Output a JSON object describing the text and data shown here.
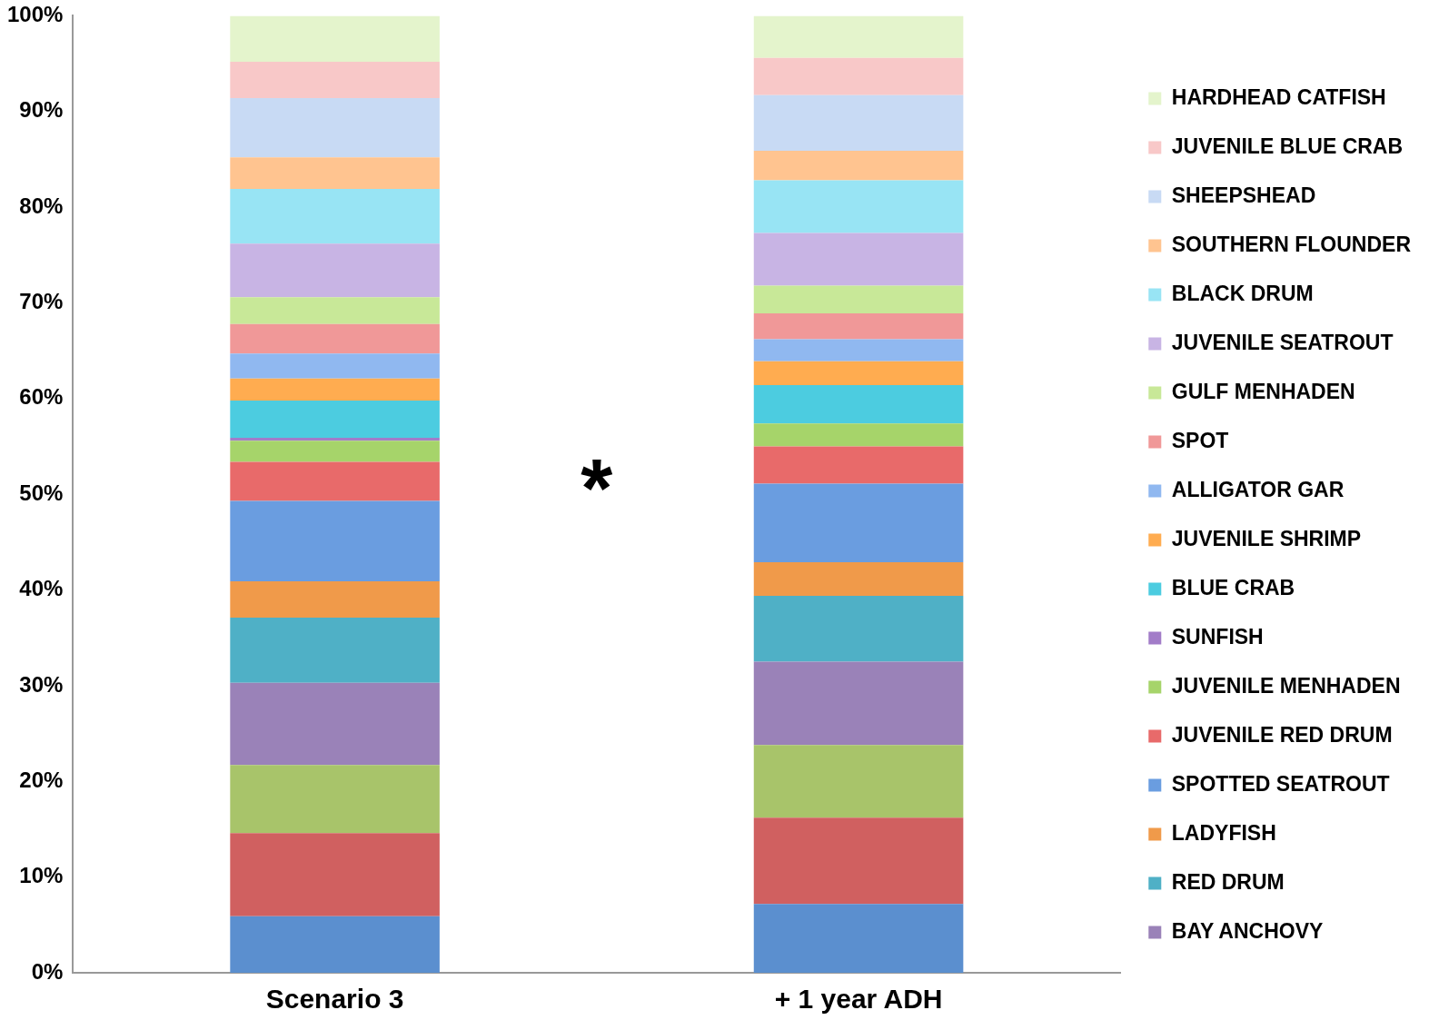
{
  "chart_data": {
    "type": "bar",
    "stacked": true,
    "categories": [
      "Scenario 3",
      "+ 1 year ADH"
    ],
    "series": [
      {
        "color": "#5b8fcf",
        "values": [
          5.9,
          7.2
        ]
      },
      {
        "color": "#d06060",
        "values": [
          8.7,
          9.0
        ]
      },
      {
        "color": "#a8c46a",
        "values": [
          7.1,
          7.6
        ]
      },
      {
        "name": "BAY ANCHOVY",
        "color": "#9a82b8",
        "values": [
          8.6,
          8.7
        ]
      },
      {
        "name": "RED DRUM",
        "color": "#4fb0c6",
        "values": [
          6.8,
          6.9
        ]
      },
      {
        "name": "LADYFISH",
        "color": "#f09a4a",
        "values": [
          3.8,
          3.5
        ]
      },
      {
        "name": "SPOTTED SEATROUT",
        "color": "#6a9de0",
        "values": [
          8.4,
          8.2
        ]
      },
      {
        "name": "JUVENILE RED DRUM",
        "color": "#e86a6a",
        "values": [
          4.1,
          3.9
        ]
      },
      {
        "name": "JUVENILE MENHADEN",
        "color": "#a6d46a",
        "values": [
          2.2,
          2.4
        ]
      },
      {
        "name": "SUNFISH",
        "color": "#a27cc8",
        "values": [
          0.3,
          0
        ]
      },
      {
        "name": "BLUE CRAB",
        "color": "#4ccce0",
        "values": [
          3.9,
          4.0
        ]
      },
      {
        "name": "JUVENILE SHRIMP",
        "color": "#ffac50",
        "values": [
          2.3,
          2.5
        ]
      },
      {
        "name": "ALLIGATOR GAR",
        "color": "#90b8f0",
        "values": [
          2.6,
          2.3
        ]
      },
      {
        "name": "SPOT",
        "color": "#f09898",
        "values": [
          3.1,
          2.7
        ]
      },
      {
        "name": "GULF MENHADEN",
        "color": "#c8e898",
        "values": [
          2.8,
          2.9
        ]
      },
      {
        "name": "JUVENILE SEATROUT",
        "color": "#c8b4e4",
        "values": [
          5.6,
          5.5
        ]
      },
      {
        "name": "BLACK DRUM",
        "color": "#98e4f4",
        "values": [
          5.7,
          5.5
        ]
      },
      {
        "name": "SOUTHERN FLOUNDER",
        "color": "#ffc490",
        "values": [
          3.3,
          3.1
        ]
      },
      {
        "name": "SHEEPSHEAD",
        "color": "#c8daf4",
        "values": [
          6.2,
          5.8
        ]
      },
      {
        "name": "JUVENILE BLUE CRAB",
        "color": "#f8c8c8",
        "values": [
          3.8,
          3.9
        ]
      },
      {
        "name": "HARDHEAD CATFISH",
        "color": "#e4f4cc",
        "values": [
          4.8,
          4.4
        ]
      }
    ],
    "ylim": [
      0,
      100
    ],
    "yticks": [
      {
        "value": 0,
        "label": "0%"
      },
      {
        "value": 10,
        "label": "10%"
      },
      {
        "value": 20,
        "label": "20%"
      },
      {
        "value": 30,
        "label": "30%"
      },
      {
        "value": 40,
        "label": "40%"
      },
      {
        "value": 50,
        "label": "50%"
      },
      {
        "value": 60,
        "label": "60%"
      },
      {
        "value": 70,
        "label": "70%"
      },
      {
        "value": 80,
        "label": "80%"
      },
      {
        "value": 90,
        "label": "90%"
      },
      {
        "value": 100,
        "label": "100%"
      }
    ],
    "grid": false,
    "legend": "right",
    "annotations": [
      "*"
    ]
  }
}
